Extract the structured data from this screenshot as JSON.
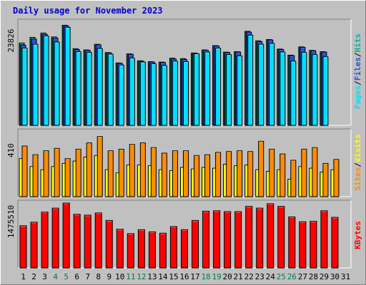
{
  "title": "Daily usage for November 2023",
  "colors": {
    "hits": "#00b0a0",
    "hits_dark": "#00603a",
    "hits_top": "#40c080",
    "files": "#2050e0",
    "files_top": "#4070ff",
    "pages": "#00e0ff",
    "pages_top": "#80f0ff",
    "visits": "#ffff00",
    "visits_top": "#ffff90",
    "sites": "#ff8c00",
    "sites_top": "#ffb050",
    "kbytes": "#ff0000",
    "kbytes_top": "#ff7070",
    "weekend_day": "#008040",
    "weekday": "#000000",
    "panel_bg": "#c0c0c0"
  },
  "chart_data": [
    {
      "type": "bar",
      "name": "hits-files-pages",
      "max_label": "23826",
      "ylim": [
        0,
        23826
      ],
      "legend": [
        "Hits",
        "Files",
        "Pages"
      ],
      "categories": [
        "1",
        "2",
        "3",
        "4",
        "5",
        "6",
        "7",
        "8",
        "9",
        "10",
        "11",
        "12",
        "13",
        "14",
        "15",
        "16",
        "17",
        "18",
        "19",
        "20",
        "21",
        "22",
        "23",
        "24",
        "25",
        "26",
        "27",
        "28",
        "29",
        "30",
        "31"
      ],
      "series": [
        {
          "name": "Hits",
          "values": [
            19000,
            20300,
            21300,
            20400,
            23100,
            17700,
            17400,
            18700,
            16800,
            14400,
            16500,
            14900,
            14700,
            14600,
            15500,
            15400,
            16700,
            17400,
            18400,
            16900,
            17000,
            21700,
            19500,
            19800,
            17600,
            16200,
            18100,
            17300,
            17000,
            null,
            null
          ]
        },
        {
          "name": "Files",
          "values": [
            18500,
            19900,
            21000,
            20100,
            22900,
            17500,
            17300,
            18600,
            16700,
            14300,
            16400,
            14800,
            14600,
            14500,
            15300,
            15200,
            16600,
            17300,
            18300,
            16800,
            16900,
            21500,
            19300,
            19700,
            17500,
            16100,
            18000,
            17200,
            16900,
            null,
            null
          ]
        },
        {
          "name": "Pages",
          "values": [
            17800,
            18700,
            20600,
            19200,
            22600,
            17000,
            16800,
            17700,
            16400,
            13900,
            15500,
            14600,
            14200,
            13800,
            14800,
            14700,
            16500,
            16900,
            17800,
            16300,
            16000,
            20800,
            18700,
            18900,
            16900,
            14800,
            16800,
            16300,
            15800,
            null,
            null
          ]
        }
      ]
    },
    {
      "type": "bar",
      "name": "sites-visits",
      "max_label": "410",
      "ylim": [
        0,
        410
      ],
      "legend": [
        "Sites",
        "Visits"
      ],
      "categories": [
        "1",
        "2",
        "3",
        "4",
        "5",
        "6",
        "7",
        "8",
        "9",
        "10",
        "11",
        "12",
        "13",
        "14",
        "15",
        "16",
        "17",
        "18",
        "19",
        "20",
        "21",
        "22",
        "23",
        "24",
        "25",
        "26",
        "27",
        "28",
        "29",
        "30",
        "31"
      ],
      "series": [
        {
          "name": "Visits",
          "values": [
            240,
            190,
            170,
            190,
            210,
            225,
            250,
            260,
            170,
            150,
            200,
            200,
            195,
            170,
            165,
            185,
            175,
            185,
            180,
            205,
            195,
            200,
            170,
            160,
            170,
            110,
            190,
            180,
            155,
            170,
            null
          ]
        },
        {
          "name": "Sites",
          "values": [
            320,
            265,
            290,
            305,
            240,
            300,
            340,
            380,
            290,
            300,
            330,
            340,
            310,
            275,
            290,
            290,
            260,
            265,
            280,
            285,
            290,
            285,
            350,
            300,
            270,
            230,
            300,
            310,
            210,
            235,
            null
          ]
        }
      ]
    },
    {
      "type": "bar",
      "name": "kbytes",
      "max_label": "1475510",
      "ylim": [
        0,
        1475510
      ],
      "legend": [
        "KBytes"
      ],
      "categories": [
        "1",
        "2",
        "3",
        "4",
        "5",
        "6",
        "7",
        "8",
        "9",
        "10",
        "11",
        "12",
        "13",
        "14",
        "15",
        "16",
        "17",
        "18",
        "19",
        "20",
        "21",
        "22",
        "23",
        "24",
        "25",
        "26",
        "27",
        "28",
        "29",
        "30",
        "31"
      ],
      "series": [
        {
          "name": "KBytes",
          "values": [
            960000,
            1040000,
            1270000,
            1360000,
            1475510,
            1220000,
            1200000,
            1250000,
            1080000,
            880000,
            780000,
            870000,
            820000,
            790000,
            940000,
            870000,
            1080000,
            1290000,
            1300000,
            1280000,
            1280000,
            1400000,
            1360000,
            1460000,
            1400000,
            1160000,
            1050000,
            1060000,
            1300000,
            1150000,
            null
          ]
        }
      ]
    }
  ],
  "legends": [
    {
      "labels": [
        "Pages",
        "Files",
        "Hits"
      ],
      "sep": "/"
    },
    {
      "labels": [
        "Sites",
        "Visits"
      ],
      "sep": "/"
    },
    {
      "labels": [
        "KBytes"
      ],
      "sep": "/"
    }
  ],
  "weekend_days": [
    "4",
    "5",
    "11",
    "12",
    "18",
    "19",
    "25",
    "26"
  ]
}
